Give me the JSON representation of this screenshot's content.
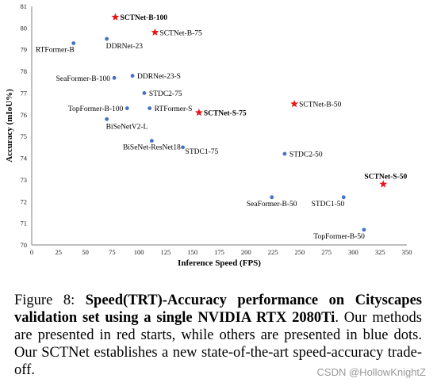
{
  "chart_data": {
    "type": "scatter",
    "xlabel": "Inference Speed (FPS)",
    "ylabel": "Accuracy (mIoU%)",
    "xlim": [
      0,
      350
    ],
    "ylim": [
      70,
      81
    ],
    "xticks": [
      "0",
      "25",
      "50",
      "75",
      "100",
      "125",
      "150",
      "175",
      "200",
      "225",
      "250",
      "275",
      "300",
      "325",
      "350"
    ],
    "yticks": [
      "70",
      "71",
      "72",
      "73",
      "74",
      "75",
      "76",
      "77",
      "78",
      "79",
      "80",
      "81"
    ],
    "grid": false,
    "points": [
      {
        "label": "SCTNet-B-100",
        "x": 78,
        "y": 80.5,
        "ours": true,
        "bold": true,
        "pos": "right"
      },
      {
        "label": "SCTNet-B-75",
        "x": 115,
        "y": 79.8,
        "ours": true,
        "bold": false,
        "pos": "right"
      },
      {
        "label": "SCTNet-B-50",
        "x": 245,
        "y": 76.5,
        "ours": true,
        "bold": false,
        "pos": "right"
      },
      {
        "label": "SCTNet-S-75",
        "x": 156,
        "y": 76.1,
        "ours": true,
        "bold": true,
        "pos": "right"
      },
      {
        "label": "SCTNet-S-50",
        "x": 328,
        "y": 72.8,
        "ours": true,
        "bold": true,
        "pos": "above-left"
      },
      {
        "label": "DDRNet-23",
        "x": 70,
        "y": 79.5,
        "ours": false,
        "bold": false,
        "pos": "below"
      },
      {
        "label": "RTFormer-B",
        "x": 39,
        "y": 79.3,
        "ours": false,
        "bold": false,
        "pos": "below-left"
      },
      {
        "label": "SeaFormer-B-100",
        "x": 77,
        "y": 77.7,
        "ours": false,
        "bold": false,
        "pos": "left"
      },
      {
        "label": "DDRNet-23-S",
        "x": 94,
        "y": 77.8,
        "ours": false,
        "bold": false,
        "pos": "right"
      },
      {
        "label": "STDC2-75",
        "x": 105,
        "y": 77.0,
        "ours": false,
        "bold": false,
        "pos": "right"
      },
      {
        "label": "TopFormer-B-100",
        "x": 89,
        "y": 76.3,
        "ours": false,
        "bold": false,
        "pos": "left"
      },
      {
        "label": "RTFormer-S",
        "x": 110,
        "y": 76.3,
        "ours": false,
        "bold": false,
        "pos": "right"
      },
      {
        "label": "BiSeNetV2-L",
        "x": 70,
        "y": 75.8,
        "ours": false,
        "bold": false,
        "pos": "below"
      },
      {
        "label": "BiSeNet-ResNet18",
        "x": 112,
        "y": 74.8,
        "ours": false,
        "bold": false,
        "pos": "below-center"
      },
      {
        "label": "STDC1-75",
        "x": 141,
        "y": 74.5,
        "ours": false,
        "bold": false,
        "pos": "below-right"
      },
      {
        "label": "STDC2-50",
        "x": 236,
        "y": 74.2,
        "ours": false,
        "bold": false,
        "pos": "right"
      },
      {
        "label": "SeaFormer-B-50",
        "x": 224,
        "y": 72.2,
        "ours": false,
        "bold": false,
        "pos": "below-center"
      },
      {
        "label": "STDC1-50",
        "x": 291,
        "y": 72.2,
        "ours": false,
        "bold": false,
        "pos": "below-left"
      },
      {
        "label": "TopFormer-B-50",
        "x": 310,
        "y": 70.7,
        "ours": false,
        "bold": false,
        "pos": "below-left"
      }
    ],
    "colors": {
      "ours": "#e8161c",
      "others": "#4472c4"
    }
  },
  "caption": {
    "prefix": "Figure 8: ",
    "title": "Speed(TRT)-Accuracy performance on Cityscapes validation set using a single NVIDIA RTX 2080Ti",
    "body": ". Our methods are presented in red starts, while others are presented in blue dots. Our SCTNet establishes a new state-of-the-art speed-accuracy trade-off."
  },
  "watermark": "CSDN @HollowKnightZ"
}
